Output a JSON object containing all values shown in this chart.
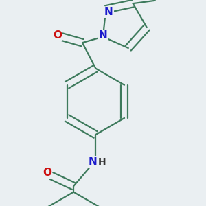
{
  "background_color": "#eaeff2",
  "bond_color": "#3d7a5c",
  "atom_colors": {
    "O": "#cc1111",
    "N": "#1a1acc",
    "C": "#000000",
    "H": "#333333"
  },
  "figsize": [
    3.0,
    3.0
  ],
  "dpi": 100
}
